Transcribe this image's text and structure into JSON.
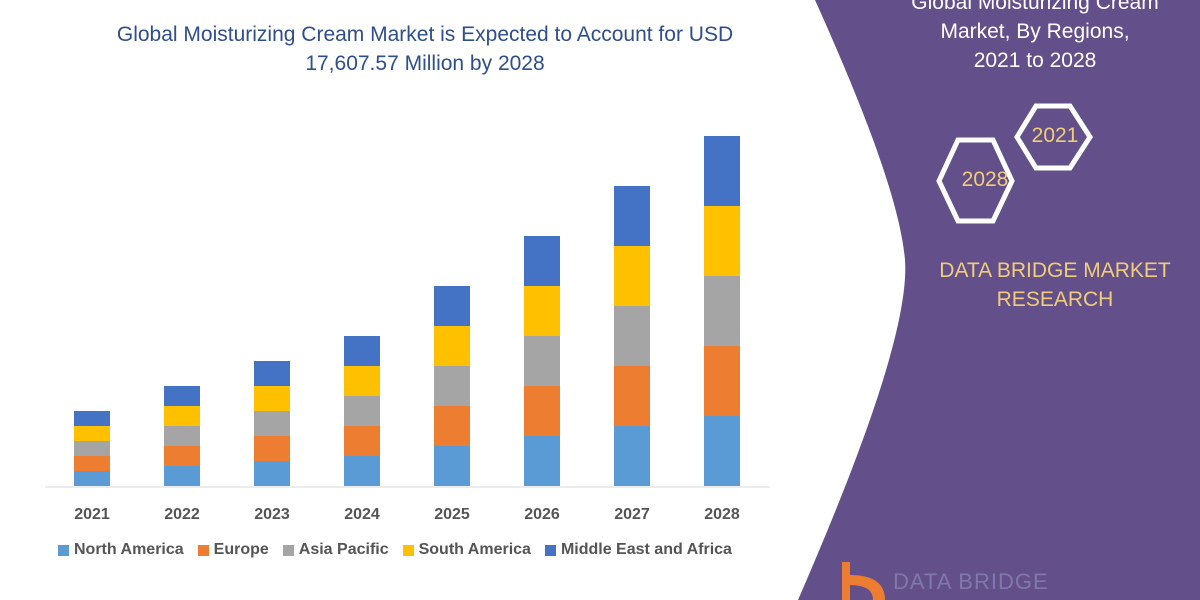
{
  "chart_data": {
    "type": "bar",
    "stacked": true,
    "title": "Global Moisturizing Cream Market is Expected to Account for USD 17,607.57 Million by 2028",
    "categories": [
      "2021",
      "2022",
      "2023",
      "2024",
      "2025",
      "2026",
      "2027",
      "2028"
    ],
    "series": [
      {
        "name": "North America",
        "color": "#5b9bd5",
        "values": [
          15,
          20,
          25,
          30,
          40,
          50,
          60,
          70
        ]
      },
      {
        "name": "Europe",
        "color": "#ed7d31",
        "values": [
          15,
          20,
          25,
          30,
          40,
          50,
          60,
          70
        ]
      },
      {
        "name": "Asia Pacific",
        "color": "#a5a5a5",
        "values": [
          15,
          20,
          25,
          30,
          40,
          50,
          60,
          70
        ]
      },
      {
        "name": "South America",
        "color": "#ffc000",
        "values": [
          15,
          20,
          25,
          30,
          40,
          50,
          60,
          70
        ]
      },
      {
        "name": "Middle East and Africa",
        "color": "#4472c4",
        "values": [
          15,
          20,
          25,
          30,
          40,
          50,
          60,
          70
        ]
      }
    ],
    "ylim": [
      0,
      350
    ],
    "grid": false,
    "legend_position": "bottom"
  },
  "panel": {
    "title_lines": [
      "Global Moisturizing Cream",
      "Market, By Regions,",
      "2021 to 2028"
    ],
    "hex_left": "2028",
    "hex_right": "2021",
    "brand_lines": [
      "DATA BRIDGE MARKET",
      "RESEARCH"
    ],
    "background": "#634f8a",
    "accent": "#f0cd7a"
  },
  "logo": {
    "text": "DATA BRIDGE"
  }
}
